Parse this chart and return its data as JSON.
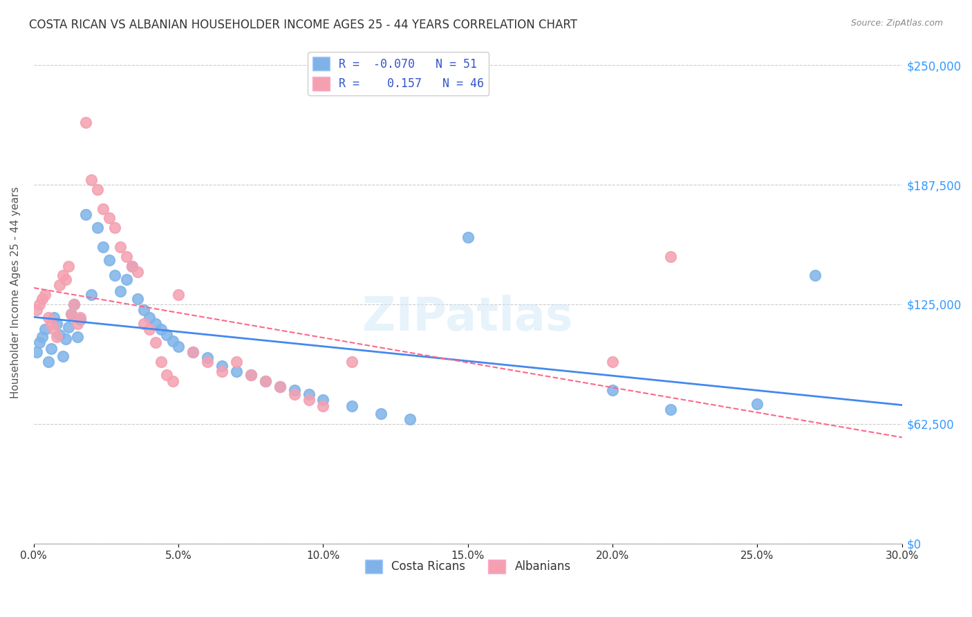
{
  "title": "COSTA RICAN VS ALBANIAN HOUSEHOLDER INCOME AGES 25 - 44 YEARS CORRELATION CHART",
  "source": "Source: ZipAtlas.com",
  "xlabel_ticks": [
    "0.0%",
    "5.0%",
    "10.0%",
    "15.0%",
    "20.0%",
    "25.0%",
    "30.0%"
  ],
  "xlabel_vals": [
    0.0,
    0.05,
    0.1,
    0.15,
    0.2,
    0.25,
    0.3
  ],
  "ylabel_ticks": [
    "$0",
    "$62,500",
    "$125,000",
    "$187,500",
    "$250,000"
  ],
  "ylabel_vals": [
    0,
    62500,
    125000,
    187500,
    250000
  ],
  "ylabel_label": "Householder Income Ages 25 - 44 years",
  "watermark": "ZIPatlas",
  "background_color": "#ffffff",
  "grid_color": "#cccccc",
  "costa_rican_color": "#7fb3e8",
  "albanian_color": "#f4a0b0",
  "costa_rican_R": -0.07,
  "costa_rican_N": 51,
  "albanian_R": 0.157,
  "albanian_N": 46,
  "legend_label_cr": "Costa Ricans",
  "legend_label_al": "Albanians",
  "title_color": "#333333",
  "axis_label_color": "#555555",
  "tick_color_y": "#3399ff",
  "tick_color_x": "#333333",
  "legend_text_color": "#3355cc",
  "trend_cr_color": "#4488ee",
  "trend_al_color": "#ff6688",
  "costa_rican_points": [
    [
      0.001,
      100000
    ],
    [
      0.002,
      105000
    ],
    [
      0.003,
      108000
    ],
    [
      0.004,
      112000
    ],
    [
      0.005,
      95000
    ],
    [
      0.006,
      102000
    ],
    [
      0.007,
      118000
    ],
    [
      0.008,
      115000
    ],
    [
      0.009,
      109000
    ],
    [
      0.01,
      98000
    ],
    [
      0.011,
      107000
    ],
    [
      0.012,
      113000
    ],
    [
      0.013,
      120000
    ],
    [
      0.014,
      125000
    ],
    [
      0.015,
      108000
    ],
    [
      0.016,
      117000
    ],
    [
      0.018,
      172000
    ],
    [
      0.02,
      130000
    ],
    [
      0.022,
      165000
    ],
    [
      0.024,
      155000
    ],
    [
      0.026,
      148000
    ],
    [
      0.028,
      140000
    ],
    [
      0.03,
      132000
    ],
    [
      0.032,
      138000
    ],
    [
      0.034,
      145000
    ],
    [
      0.036,
      128000
    ],
    [
      0.038,
      122000
    ],
    [
      0.04,
      118000
    ],
    [
      0.042,
      115000
    ],
    [
      0.044,
      112000
    ],
    [
      0.046,
      109000
    ],
    [
      0.048,
      106000
    ],
    [
      0.05,
      103000
    ],
    [
      0.055,
      100000
    ],
    [
      0.06,
      97000
    ],
    [
      0.065,
      93000
    ],
    [
      0.07,
      90000
    ],
    [
      0.075,
      88000
    ],
    [
      0.08,
      85000
    ],
    [
      0.085,
      82000
    ],
    [
      0.09,
      80000
    ],
    [
      0.095,
      78000
    ],
    [
      0.1,
      75000
    ],
    [
      0.11,
      72000
    ],
    [
      0.12,
      68000
    ],
    [
      0.13,
      65000
    ],
    [
      0.15,
      160000
    ],
    [
      0.2,
      80000
    ],
    [
      0.22,
      70000
    ],
    [
      0.25,
      73000
    ],
    [
      0.27,
      140000
    ]
  ],
  "albanian_points": [
    [
      0.001,
      122000
    ],
    [
      0.002,
      125000
    ],
    [
      0.003,
      128000
    ],
    [
      0.004,
      130000
    ],
    [
      0.005,
      118000
    ],
    [
      0.006,
      115000
    ],
    [
      0.007,
      112000
    ],
    [
      0.008,
      108000
    ],
    [
      0.009,
      135000
    ],
    [
      0.01,
      140000
    ],
    [
      0.011,
      138000
    ],
    [
      0.012,
      145000
    ],
    [
      0.013,
      120000
    ],
    [
      0.014,
      125000
    ],
    [
      0.015,
      115000
    ],
    [
      0.016,
      118000
    ],
    [
      0.018,
      220000
    ],
    [
      0.02,
      190000
    ],
    [
      0.022,
      185000
    ],
    [
      0.024,
      175000
    ],
    [
      0.026,
      170000
    ],
    [
      0.028,
      165000
    ],
    [
      0.03,
      155000
    ],
    [
      0.032,
      150000
    ],
    [
      0.034,
      145000
    ],
    [
      0.036,
      142000
    ],
    [
      0.038,
      115000
    ],
    [
      0.04,
      112000
    ],
    [
      0.042,
      105000
    ],
    [
      0.044,
      95000
    ],
    [
      0.046,
      88000
    ],
    [
      0.048,
      85000
    ],
    [
      0.05,
      130000
    ],
    [
      0.055,
      100000
    ],
    [
      0.06,
      95000
    ],
    [
      0.065,
      90000
    ],
    [
      0.07,
      95000
    ],
    [
      0.075,
      88000
    ],
    [
      0.08,
      85000
    ],
    [
      0.085,
      82000
    ],
    [
      0.09,
      78000
    ],
    [
      0.095,
      75000
    ],
    [
      0.1,
      72000
    ],
    [
      0.11,
      95000
    ],
    [
      0.2,
      95000
    ],
    [
      0.22,
      150000
    ]
  ],
  "xlim": [
    0.0,
    0.3
  ],
  "ylim": [
    0,
    262500
  ]
}
